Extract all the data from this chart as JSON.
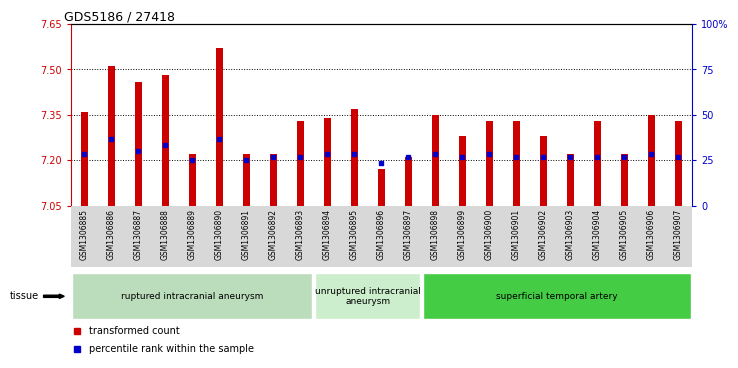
{
  "title": "GDS5186 / 27418",
  "samples": [
    "GSM1306885",
    "GSM1306886",
    "GSM1306887",
    "GSM1306888",
    "GSM1306889",
    "GSM1306890",
    "GSM1306891",
    "GSM1306892",
    "GSM1306893",
    "GSM1306894",
    "GSM1306895",
    "GSM1306896",
    "GSM1306897",
    "GSM1306898",
    "GSM1306899",
    "GSM1306900",
    "GSM1306901",
    "GSM1306902",
    "GSM1306903",
    "GSM1306904",
    "GSM1306905",
    "GSM1306906",
    "GSM1306907"
  ],
  "bar_values": [
    7.36,
    7.51,
    7.46,
    7.48,
    7.22,
    7.57,
    7.22,
    7.22,
    7.33,
    7.34,
    7.37,
    7.17,
    7.21,
    7.35,
    7.28,
    7.33,
    7.33,
    7.28,
    7.22,
    7.33,
    7.22,
    7.35,
    7.33
  ],
  "percentile_values": [
    7.22,
    7.27,
    7.23,
    7.25,
    7.2,
    7.27,
    7.2,
    7.21,
    7.21,
    7.22,
    7.22,
    7.19,
    7.21,
    7.22,
    7.21,
    7.22,
    7.21,
    7.21,
    7.21,
    7.21,
    7.21,
    7.22,
    7.21
  ],
  "ymin": 7.05,
  "ymax": 7.65,
  "yticks": [
    7.05,
    7.2,
    7.35,
    7.5,
    7.65
  ],
  "right_yticks": [
    0,
    25,
    50,
    75,
    100
  ],
  "right_ytick_labels": [
    "0",
    "25",
    "50",
    "75",
    "100%"
  ],
  "gridlines": [
    7.2,
    7.35,
    7.5
  ],
  "bar_color": "#cc0000",
  "dot_color": "#0000cc",
  "groups": [
    {
      "label": "ruptured intracranial aneurysm",
      "start": 0,
      "end": 8,
      "color": "#bbddbb"
    },
    {
      "label": "unruptured intracranial\naneurysm",
      "start": 9,
      "end": 12,
      "color": "#cceecc"
    },
    {
      "label": "superficial temporal artery",
      "start": 13,
      "end": 22,
      "color": "#44cc44"
    }
  ],
  "tissue_label": "tissue",
  "legend_items": [
    {
      "label": "transformed count",
      "color": "#cc0000"
    },
    {
      "label": "percentile rank within the sample",
      "color": "#0000cc"
    }
  ],
  "left_axis_color": "#cc0000",
  "right_axis_color": "#0000cc",
  "xtick_bg_color": "#d8d8d8"
}
